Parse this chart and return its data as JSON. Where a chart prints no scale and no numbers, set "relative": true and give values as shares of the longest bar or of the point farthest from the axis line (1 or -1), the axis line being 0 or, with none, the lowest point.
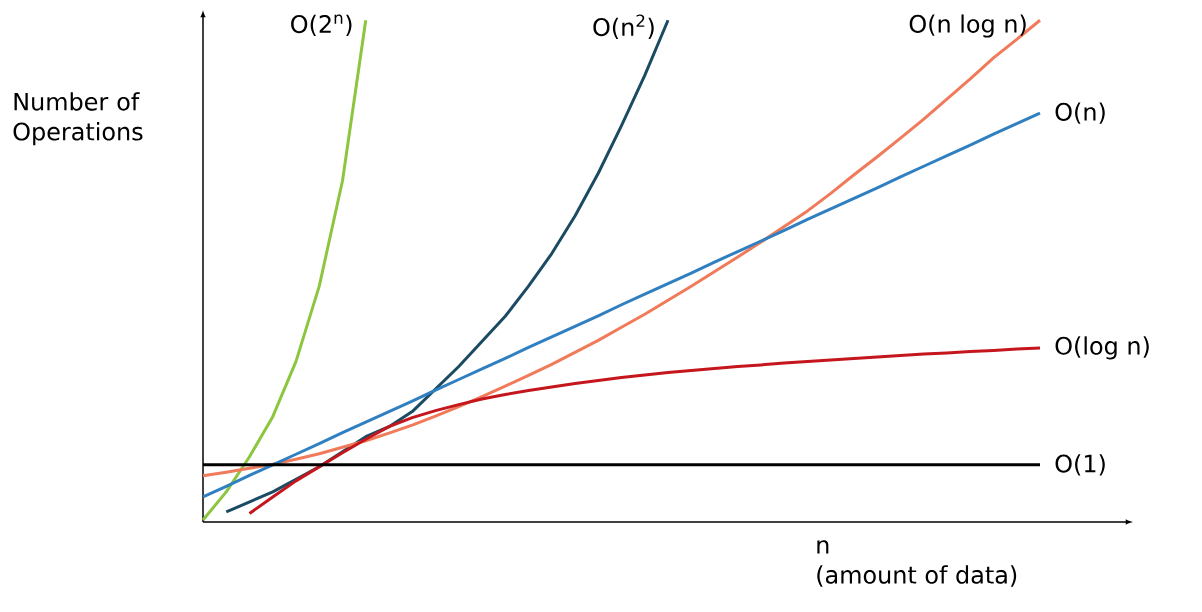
{
  "chart_data": {
    "type": "line",
    "relative": true,
    "xlabel": "n\n(amount of data)",
    "ylabel": "Number of Operations",
    "categories": [
      null,
      null,
      null,
      null,
      null,
      null,
      null,
      null,
      null,
      null,
      null,
      null,
      null,
      null,
      null,
      null,
      null,
      null,
      null,
      null,
      null,
      null,
      null,
      null,
      null,
      null,
      null,
      null,
      null,
      null,
      null,
      null,
      null,
      null,
      null,
      null,
      null
    ],
    "series": [
      {
        "name": "O(2$^{n}$)",
        "color": "#8cc63f",
        "values": [
          0.004,
          0.06,
          0.13,
          0.21,
          0.32,
          0.47,
          0.68,
          1.0,
          null,
          null,
          null,
          null,
          null,
          null,
          null,
          null,
          null,
          null,
          null,
          null,
          null,
          null,
          null,
          null,
          null,
          null,
          null,
          null,
          null,
          null,
          null,
          null,
          null,
          null,
          null,
          null,
          null
        ]
      },
      {
        "name": "O(n$^{2}$)",
        "color": "#1b4a63",
        "values": [
          null,
          0.02,
          0.04,
          0.06,
          0.085,
          0.11,
          0.14,
          0.17,
          0.19,
          0.22,
          0.265,
          0.31,
          0.36,
          0.41,
          0.47,
          0.535,
          0.61,
          0.695,
          0.79,
          0.89,
          1.0,
          null,
          null,
          null,
          null,
          null,
          null,
          null,
          null,
          null,
          null,
          null,
          null,
          null,
          null,
          null,
          null
        ]
      },
      {
        "name": "O(n log n)",
        "color": "#f07a5a",
        "values": [
          0.092,
          0.099,
          0.107,
          0.115,
          0.125,
          0.136,
          0.149,
          0.162,
          0.177,
          0.193,
          0.211,
          0.23,
          0.25,
          0.271,
          0.292,
          0.314,
          0.338,
          0.362,
          0.388,
          0.414,
          0.442,
          0.47,
          0.499,
          0.528,
          0.558,
          0.589,
          0.62,
          0.655,
          0.692,
          0.728,
          0.765,
          0.803,
          0.843,
          0.883,
          0.925,
          0.962,
          1.0
        ]
      },
      {
        "name": "O(n)",
        "color": "#2f7fc1",
        "values": [
          0.05,
          0.071,
          0.093,
          0.114,
          0.135,
          0.156,
          0.178,
          0.199,
          0.22,
          0.241,
          0.263,
          0.284,
          0.305,
          0.326,
          0.348,
          0.369,
          0.39,
          0.411,
          0.433,
          0.454,
          0.475,
          0.496,
          0.518,
          0.539,
          0.56,
          0.581,
          0.603,
          0.624,
          0.645,
          0.666,
          0.688,
          0.709,
          0.73,
          0.751,
          0.773,
          0.794,
          0.815
        ]
      },
      {
        "name": "O(log n)",
        "color": "#c4161c",
        "values": [
          null,
          null,
          0.017,
          0.05,
          0.082,
          0.11,
          0.138,
          0.165,
          0.19,
          0.208,
          0.222,
          0.234,
          0.245,
          0.254,
          0.262,
          0.269,
          0.276,
          0.282,
          0.288,
          0.293,
          0.298,
          0.302,
          0.306,
          0.31,
          0.313,
          0.317,
          0.32,
          0.323,
          0.326,
          0.329,
          0.332,
          0.335,
          0.337,
          0.34,
          0.342,
          0.345,
          0.347
        ]
      },
      {
        "name": "O(1)",
        "color": "#000000",
        "values": [
          0.114,
          0.114,
          0.114,
          0.114,
          0.114,
          0.114,
          0.114,
          0.114,
          0.114,
          0.114,
          0.114,
          0.114,
          0.114,
          0.114,
          0.114,
          0.114,
          0.114,
          0.114,
          0.114,
          0.114,
          0.114,
          0.114,
          0.114,
          0.114,
          0.114,
          0.114,
          0.114,
          0.114,
          0.114,
          0.114,
          0.114,
          0.114,
          0.114,
          0.114,
          0.114,
          0.114,
          0.114
        ]
      }
    ]
  }
}
